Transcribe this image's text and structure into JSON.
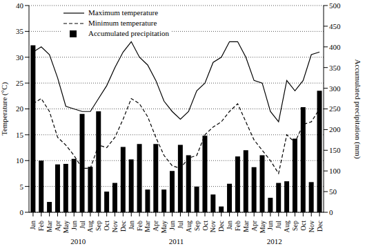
{
  "chart_data": {
    "type": "bar",
    "categories": [
      "Jan",
      "Feb",
      "Mar",
      "Apr",
      "May",
      "Jun",
      "Jul",
      "Aug",
      "Sep",
      "Oct",
      "Nov",
      "Dec",
      "Jan",
      "Feb",
      "Mar",
      "Apr",
      "May",
      "Jun",
      "Jul",
      "Aug",
      "Sep",
      "Oct",
      "Nov",
      "Dec",
      "Jan",
      "Feb",
      "Mar",
      "Apr",
      "May",
      "Jun",
      "Jul",
      "Aug",
      "Sep",
      "Oct",
      "Nov",
      "Dec"
    ],
    "annotations": [
      "2010",
      "2011",
      "2012"
    ],
    "ylabel": "Temperature (°C)",
    "y2label": "Accumulated precipitation (mm)",
    "ylim": [
      0,
      40
    ],
    "yticks": [
      0,
      5,
      10,
      15,
      20,
      25,
      30,
      35,
      40
    ],
    "y2lim": [
      0,
      500
    ],
    "y2ticks": [
      0,
      50,
      100,
      150,
      200,
      250,
      300,
      350,
      400,
      450,
      500
    ],
    "grid": true,
    "legend": "upper left",
    "series": [
      {
        "name": "Maximum temperature",
        "type": "line",
        "color": "#000000",
        "line_style": "solid",
        "values": [
          31,
          32,
          30.5,
          26,
          20.5,
          20,
          19.5,
          19.5,
          22,
          24.5,
          28,
          31,
          33,
          30,
          28.5,
          25.5,
          21.5,
          19.5,
          18,
          19.5,
          23.5,
          25,
          29,
          30,
          33,
          33,
          30,
          25.5,
          25,
          19.5,
          17.5,
          25.5,
          23.5,
          25.5,
          30.5,
          31
        ]
      },
      {
        "name": "Minimum temperature",
        "type": "line",
        "color": "#000000",
        "line_style": "dashed",
        "values": [
          21,
          22,
          19.5,
          14.5,
          13,
          11,
          8.5,
          8.5,
          13,
          12.5,
          14.5,
          18,
          22,
          21,
          18.5,
          14.5,
          11,
          9,
          8.5,
          10.5,
          11,
          15,
          16.5,
          17.5,
          19.5,
          21,
          17.5,
          14,
          12,
          10,
          7.5,
          15,
          13.5,
          17,
          17.5,
          20
        ]
      },
      {
        "name": "Accumulated precipitation",
        "type": "bar",
        "color": "#000000",
        "axis": "y2",
        "values": [
          404,
          125,
          25,
          116,
          117,
          129,
          238,
          110,
          244,
          50,
          71,
          158,
          128,
          165,
          55,
          165,
          55,
          100,
          163,
          138,
          62,
          185,
          43,
          14,
          69,
          135,
          150,
          109,
          138,
          35,
          71,
          75,
          178,
          254,
          73,
          294
        ]
      }
    ]
  }
}
